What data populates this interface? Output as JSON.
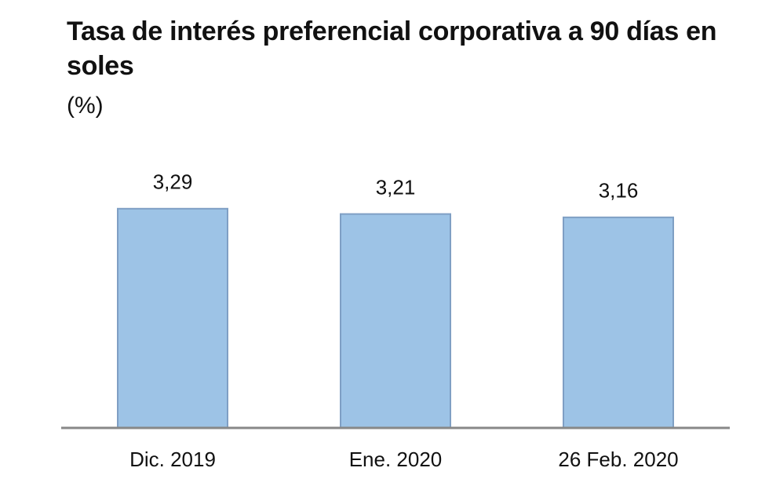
{
  "chart_data": {
    "type": "bar",
    "title": "Tasa de interés preferencial corporativa a 90 días en soles",
    "subtitle": "(%)",
    "categories": [
      "Dic. 2019",
      "Ene. 2020",
      "26 Feb. 2020"
    ],
    "values": [
      3.29,
      3.21,
      3.16
    ],
    "value_labels": [
      "3,29",
      "3,21",
      "3,16"
    ],
    "color": "#9dc3e6",
    "ylim": [
      0,
      3.7
    ]
  }
}
